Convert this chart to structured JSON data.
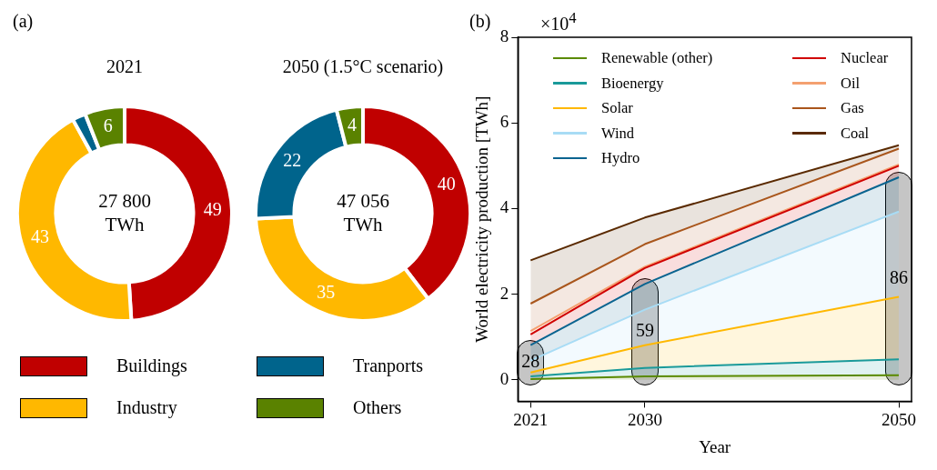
{
  "chart_data": [
    {
      "type": "donut",
      "title": "2021",
      "categories": [
        "Buildings",
        "Industry",
        "Tranports",
        "Others"
      ],
      "values": [
        49,
        43,
        2,
        6
      ],
      "colors": [
        "#c00000",
        "#ffb800",
        "#00648c",
        "#5a8200"
      ],
      "value_labels": [
        "49",
        "43",
        null,
        "6"
      ],
      "legend": "bottom",
      "annotations": [
        "(a)",
        "27 800 TWh"
      ]
    },
    {
      "type": "donut",
      "title": "2050 (1.5°C scenario)",
      "categories": [
        null,
        null,
        null,
        null
      ],
      "values": [
        40,
        35,
        22,
        4
      ],
      "colors": [
        "#c00000",
        "#ffb800",
        "#00648c",
        "#5a8200"
      ],
      "data_labels": true,
      "annotations": [
        "47 056 TWh"
      ]
    },
    {
      "type": "area",
      "xlabel": "Year",
      "ylabel": "World electricity production [TWh]",
      "x": [
        2021,
        2030,
        2050
      ],
      "xlim": [
        2020,
        2051
      ],
      "xticks": [
        2021,
        2030,
        2050
      ],
      "ylim": [
        -0.5,
        8
      ],
      "yticks": [
        0,
        2,
        4,
        6,
        8
      ],
      "stacked": true,
      "legend": "top left",
      "grid": false,
      "series": [
        {
          "name": "Renewable (other)",
          "color": "#5a8a00",
          "values": [
            0.02,
            0.08,
            0.11
          ]
        },
        {
          "name": "Bioenergy",
          "color": "#1a9a9a",
          "values": [
            0.06,
            0.2,
            0.37
          ]
        },
        {
          "name": "Solar",
          "color": "#ffb800",
          "values": [
            0.09,
            0.53,
            1.46
          ]
        },
        {
          "name": "Wind",
          "color": "#a8dcf5",
          "values": [
            0.28,
            0.83,
            1.99
          ]
        },
        {
          "name": "Hydro",
          "color": "#0a6490",
          "values": [
            0.36,
            0.6,
            0.8
          ]
        },
        {
          "name": "Nuclear",
          "color": "#d00000",
          "values": [
            0.25,
            0.37,
            0.27
          ]
        },
        {
          "name": "Oil",
          "color": "#f4a070",
          "values": [
            0.08,
            0.03,
            0.03
          ]
        },
        {
          "name": "Gas",
          "color": "#a9561c",
          "values": [
            0.64,
            0.53,
            0.37
          ]
        },
        {
          "name": "Coal",
          "color": "#5a2a00",
          "values": [
            1.01,
            0.62,
            0.08
          ]
        }
      ],
      "annotations": [
        "(b)",
        "×10$^{4}$",
        "28",
        "59",
        "86"
      ]
    }
  ]
}
